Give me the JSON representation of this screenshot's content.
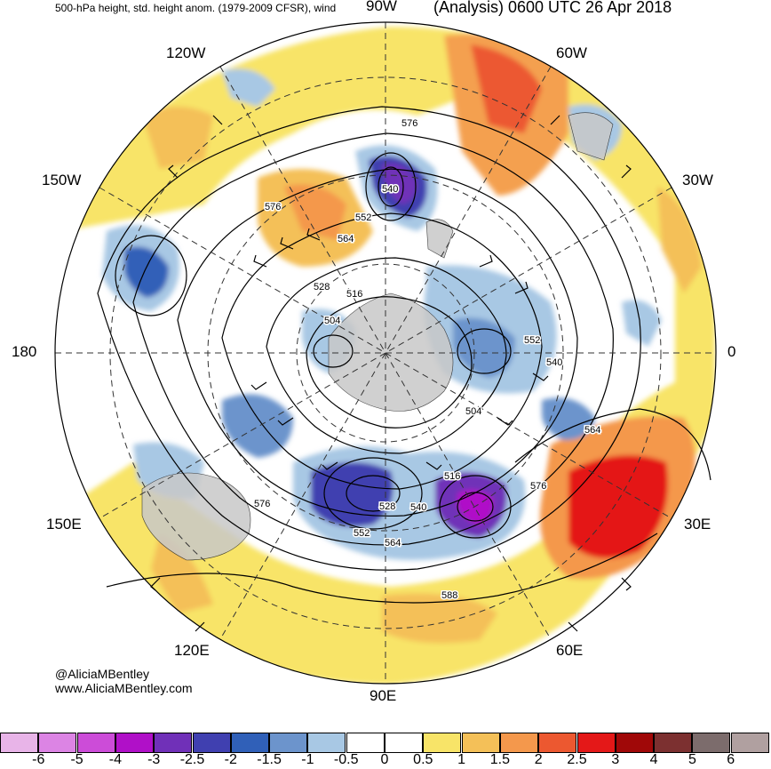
{
  "header": {
    "product": "500-hPa height, std. height anom. (1979-2009 CFSR), wind",
    "valid": "(Analysis) 0600 UTC 26 Apr 2018"
  },
  "map": {
    "projection": "north polar stereographic",
    "longitude_labels": {
      "n90w": "90W",
      "n60w": "60W",
      "n30w": "30W",
      "zero": "0",
      "e30": "30E",
      "e60": "60E",
      "e90": "90E",
      "e120": "120E",
      "e150": "150E",
      "e180": "180",
      "w150": "150W",
      "w120": "120W"
    },
    "height_contour_labels_dam": [
      "576",
      "540",
      "552",
      "564",
      "576",
      "528",
      "516",
      "504",
      "552",
      "540",
      "504",
      "564",
      "516",
      "528",
      "540",
      "552",
      "564",
      "576",
      "576",
      "588"
    ],
    "colors": {
      "land": "#c8c8c8",
      "ocean": "#ffffff"
    }
  },
  "credit": {
    "handle": "@AliciaMBentley",
    "site": "www.AliciaMBentley.com"
  },
  "colorbar": {
    "labels": [
      "-6",
      "-5",
      "-4",
      "-3",
      "-2.5",
      "-2",
      "-1.5",
      "-1",
      "-0.5",
      "0",
      "0.5",
      "1",
      "1.5",
      "2",
      "2.5",
      "3",
      "4",
      "5",
      "6"
    ],
    "colors": [
      "#e8b4e8",
      "#dc84e4",
      "#cc4cd8",
      "#b010c8",
      "#7030b8",
      "#4040b0",
      "#3060b8",
      "#6c94cc",
      "#a8c8e4",
      "#ffffff",
      "#ffffff",
      "#f8e468",
      "#f4c058",
      "#f4984c",
      "#ec5830",
      "#e41818",
      "#a00808",
      "#7c3030",
      "#7c6c6c",
      "#b0a0a0"
    ]
  }
}
